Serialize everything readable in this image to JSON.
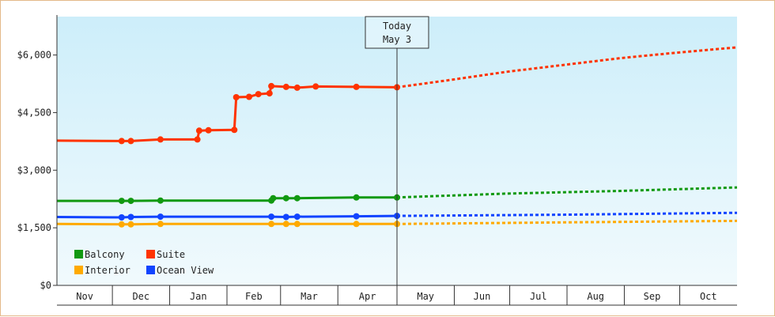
{
  "chart_data": {
    "type": "line",
    "title": "",
    "xlabel": "",
    "ylabel": "",
    "ylim": [
      0,
      7000
    ],
    "y_ticks": [
      {
        "value": 0,
        "label": "$0"
      },
      {
        "value": 1500,
        "label": "$1,500"
      },
      {
        "value": 3000,
        "label": "$3,000"
      },
      {
        "value": 4500,
        "label": "$4,500"
      },
      {
        "value": 6000,
        "label": "$6,000"
      }
    ],
    "months": [
      {
        "label": "Nov",
        "start": "2023-11-01",
        "end": "2023-12-01"
      },
      {
        "label": "Dec",
        "start": "2023-12-01",
        "end": "2024-01-01"
      },
      {
        "label": "Jan",
        "start": "2024-01-01",
        "end": "2024-02-01"
      },
      {
        "label": "Feb",
        "start": "2024-02-01",
        "end": "2024-03-01"
      },
      {
        "label": "Mar",
        "start": "2024-03-01",
        "end": "2024-04-01"
      },
      {
        "label": "Apr",
        "start": "2024-04-01",
        "end": "2024-05-03"
      },
      {
        "label": "May",
        "start": "2024-05-03",
        "end": "2024-06-03"
      },
      {
        "label": "Jun",
        "start": "2024-06-03",
        "end": "2024-07-03"
      },
      {
        "label": "Jul",
        "start": "2024-07-03",
        "end": "2024-08-03"
      },
      {
        "label": "Aug",
        "start": "2024-08-03",
        "end": "2024-09-03"
      },
      {
        "label": "Sep",
        "start": "2024-09-03",
        "end": "2024-10-03"
      },
      {
        "label": "Oct",
        "start": "2024-10-03",
        "end": "2024-11-03"
      }
    ],
    "x_range": [
      "2023-11-01",
      "2024-11-03"
    ],
    "today": {
      "line1": "Today",
      "line2": "May 3",
      "date": "2024-05-03"
    },
    "legend_placement": "bottom-left",
    "grid": false,
    "background": {
      "top": "#cdeefa",
      "bottom": "#f1fafd"
    },
    "series": [
      {
        "name": "Suite",
        "color": "#ff3300",
        "points": [
          [
            "2023-11-01",
            3770
          ],
          [
            "2023-12-06",
            3760
          ],
          [
            "2023-12-11",
            3760
          ],
          [
            "2023-12-27",
            3800
          ],
          [
            "2024-01-16",
            3800
          ],
          [
            "2024-01-17",
            4030
          ],
          [
            "2024-01-22",
            4040
          ],
          [
            "2024-02-05",
            4050
          ],
          [
            "2024-02-06",
            4900
          ],
          [
            "2024-02-13",
            4910
          ],
          [
            "2024-02-18",
            4980
          ],
          [
            "2024-02-24",
            5000
          ],
          [
            "2024-02-25",
            5190
          ],
          [
            "2024-03-04",
            5170
          ],
          [
            "2024-03-10",
            5150
          ],
          [
            "2024-03-20",
            5180
          ],
          [
            "2024-04-11",
            5170
          ],
          [
            "2024-05-03",
            5160
          ]
        ],
        "forecast": [
          [
            "2024-05-03",
            5160
          ],
          [
            "2024-06-01",
            5350
          ],
          [
            "2024-07-01",
            5560
          ],
          [
            "2024-08-01",
            5740
          ],
          [
            "2024-09-01",
            5920
          ],
          [
            "2024-10-01",
            6060
          ],
          [
            "2024-11-03",
            6200
          ]
        ]
      },
      {
        "name": "Balcony",
        "color": "#119911",
        "points": [
          [
            "2023-11-01",
            2200
          ],
          [
            "2023-12-06",
            2200
          ],
          [
            "2023-12-11",
            2200
          ],
          [
            "2023-12-27",
            2210
          ],
          [
            "2024-02-25",
            2210
          ],
          [
            "2024-02-26",
            2270
          ],
          [
            "2024-03-04",
            2270
          ],
          [
            "2024-03-10",
            2270
          ],
          [
            "2024-04-11",
            2290
          ],
          [
            "2024-05-03",
            2290
          ]
        ],
        "forecast": [
          [
            "2024-05-03",
            2290
          ],
          [
            "2024-07-01",
            2390
          ],
          [
            "2024-09-01",
            2460
          ],
          [
            "2024-11-03",
            2550
          ]
        ]
      },
      {
        "name": "Ocean View",
        "color": "#1144ff",
        "points": [
          [
            "2023-11-01",
            1780
          ],
          [
            "2023-12-06",
            1770
          ],
          [
            "2023-12-11",
            1780
          ],
          [
            "2023-12-27",
            1790
          ],
          [
            "2024-02-25",
            1790
          ],
          [
            "2024-03-04",
            1780
          ],
          [
            "2024-03-10",
            1790
          ],
          [
            "2024-04-11",
            1800
          ],
          [
            "2024-05-03",
            1810
          ]
        ],
        "forecast": [
          [
            "2024-05-03",
            1810
          ],
          [
            "2024-08-01",
            1840
          ],
          [
            "2024-11-03",
            1890
          ]
        ]
      },
      {
        "name": "Interior",
        "color": "#ffaa00",
        "points": [
          [
            "2023-11-01",
            1600
          ],
          [
            "2023-12-06",
            1590
          ],
          [
            "2023-12-11",
            1590
          ],
          [
            "2023-12-27",
            1600
          ],
          [
            "2024-02-25",
            1600
          ],
          [
            "2024-03-04",
            1600
          ],
          [
            "2024-03-10",
            1600
          ],
          [
            "2024-04-11",
            1600
          ],
          [
            "2024-05-03",
            1600
          ]
        ],
        "forecast": [
          [
            "2024-05-03",
            1600
          ],
          [
            "2024-08-01",
            1640
          ],
          [
            "2024-11-03",
            1680
          ]
        ]
      }
    ],
    "legend": [
      {
        "name": "Balcony",
        "color": "#119911"
      },
      {
        "name": "Suite",
        "color": "#ff3300"
      },
      {
        "name": "Interior",
        "color": "#ffaa00"
      },
      {
        "name": "Ocean View",
        "color": "#1144ff"
      }
    ]
  }
}
